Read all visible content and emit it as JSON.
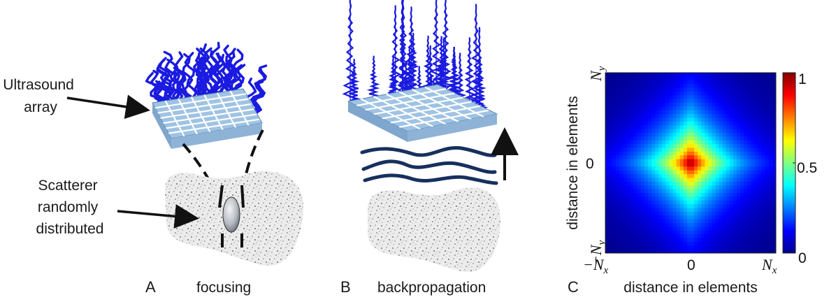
{
  "panel_a": {
    "letter": "A",
    "caption": "focusing",
    "array_label_lines": [
      "Ultrasound",
      "array"
    ],
    "scatterer_label_lines": [
      "Scatterer",
      "randomly",
      "distributed"
    ]
  },
  "panel_b": {
    "letter": "B",
    "caption": "backpropagation"
  },
  "panel_c": {
    "letter": "C",
    "xlabel": "distance in elements",
    "ylabel": "distance in elements",
    "x_ticks": {
      "left": "−N",
      "left_sub": "x",
      "center": "0",
      "right": "N",
      "right_sub": "x"
    },
    "y_ticks": {
      "top": "N",
      "top_sub": "y",
      "center": "0",
      "bottom": "−N",
      "bottom_sub": "y"
    },
    "colorbar_ticks": [
      "1",
      "0.5",
      "0"
    ],
    "colormap": "jet",
    "colors": {
      "jet_dark_red": "#800000",
      "jet_dark_blue": "#00008f"
    }
  },
  "colors": {
    "wave_blue": "#1a1ae0",
    "array_top": "#9fc3e3",
    "array_grid": "#ffffff",
    "array_side": "#8fb3d6",
    "scatterer_speckle": "#555555",
    "wavefront": "#16305e"
  }
}
